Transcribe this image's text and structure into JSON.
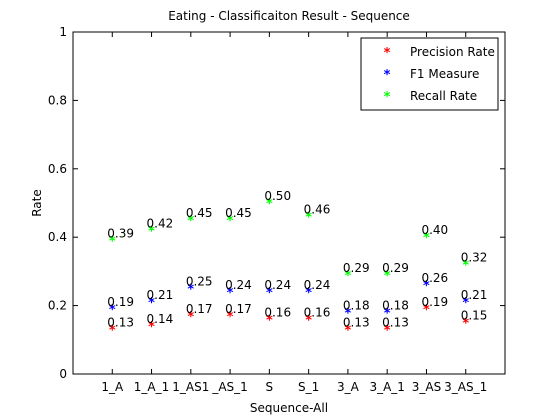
{
  "chart_data": {
    "type": "scatter",
    "title": "Eating - Classificaiton Result - Sequence",
    "xlabel": "Sequence-All",
    "ylabel": "Rate",
    "categories": [
      "1_A",
      "1_A_1",
      "1_AS1",
      "_AS_1",
      "S",
      "S_1",
      "3_A",
      "3_A_1",
      "3_AS",
      "3_AS_1"
    ],
    "xlim": [
      0,
      11
    ],
    "ylim": [
      0,
      1
    ],
    "yticks": [
      0,
      0.2,
      0.4,
      0.6,
      0.8,
      1
    ],
    "ytick_labels": [
      "0",
      "0.2",
      "0.4",
      "0.6",
      "0.8",
      "1"
    ],
    "legend_placement": "top-right",
    "grid": false,
    "marker": "*",
    "series": [
      {
        "name": "Precision Rate",
        "color": "#ff0000",
        "values": [
          0.13,
          0.14,
          0.17,
          0.17,
          0.16,
          0.16,
          0.13,
          0.13,
          0.19,
          0.15
        ],
        "labels": [
          "0.13",
          "0.14",
          "0.17",
          "0.17",
          "0.16",
          "0.16",
          "0.13",
          "0.13",
          "0.19",
          "0.15"
        ]
      },
      {
        "name": "F1 Measure",
        "color": "#0000ff",
        "values": [
          0.19,
          0.21,
          0.25,
          0.24,
          0.24,
          0.24,
          0.18,
          0.18,
          0.26,
          0.21
        ],
        "labels": [
          "0.19",
          "0.21",
          "0.25",
          "0.24",
          "0.24",
          "0.24",
          "0.18",
          "0.18",
          "0.26",
          "0.21"
        ]
      },
      {
        "name": "Recall Rate",
        "color": "#00ff00",
        "values": [
          0.39,
          0.42,
          0.45,
          0.45,
          0.5,
          0.46,
          0.29,
          0.29,
          0.4,
          0.32
        ],
        "labels": [
          "0.39",
          "0.42",
          "0.45",
          "0.45",
          "0.50",
          "0.46",
          "0.29",
          "0.29",
          "0.40",
          "0.32"
        ]
      }
    ]
  }
}
